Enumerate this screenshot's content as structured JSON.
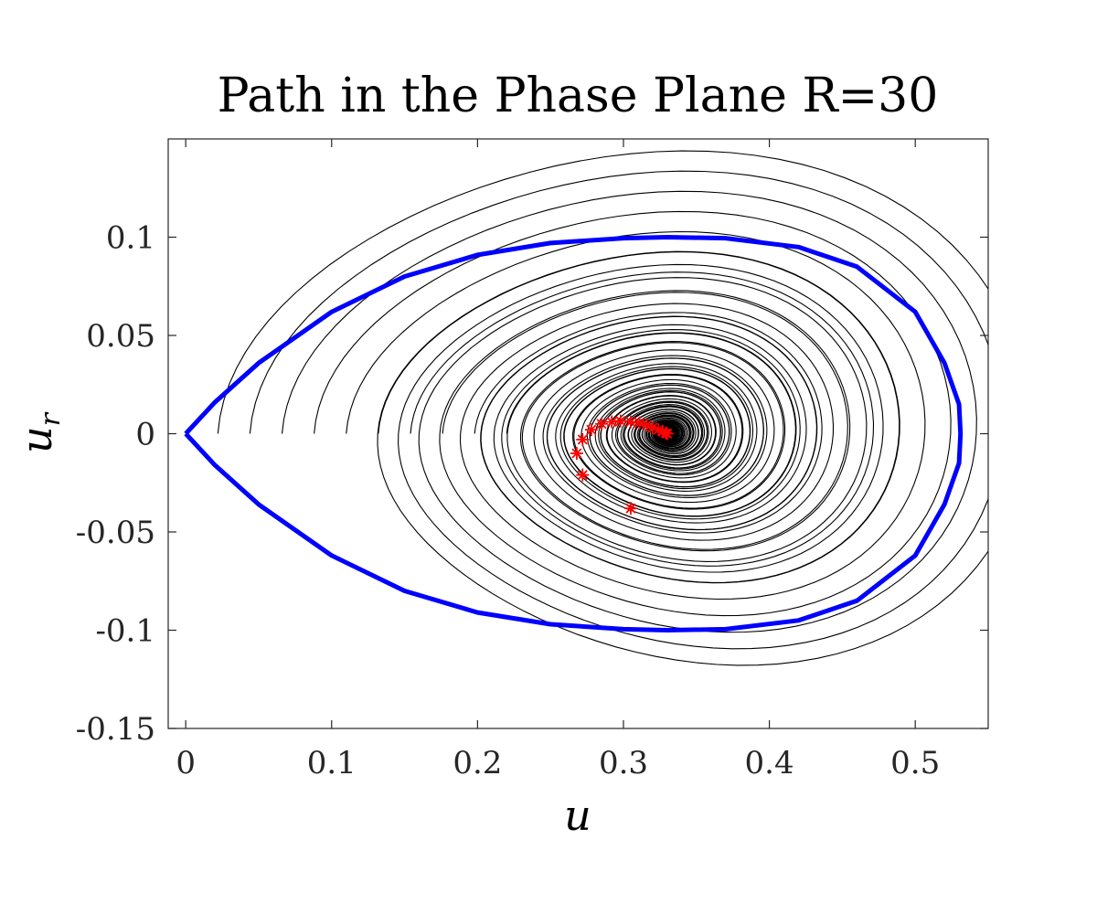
{
  "chart_data": {
    "type": "line",
    "title": "Path in the Phase Plane R=30",
    "xlabel": "u",
    "ylabel_base": "u",
    "ylabel_sub": "r",
    "xlim": [
      -0.012,
      0.55
    ],
    "ylim": [
      -0.15,
      0.15
    ],
    "xticks": [
      0,
      0.1,
      0.2,
      0.3,
      0.4,
      0.5
    ],
    "xtick_labels": [
      "0",
      "0.1",
      "0.2",
      "0.3",
      "0.4",
      "0.5"
    ],
    "yticks": [
      -0.15,
      -0.1,
      -0.05,
      0,
      0.05,
      0.1
    ],
    "ytick_labels": [
      "-0.15",
      "-0.1",
      "-0.05",
      "0",
      "0.05",
      "0.1"
    ],
    "grid": false,
    "colors": {
      "boundary": "#0000ff",
      "trajectories": "#000000",
      "markers": "#ff0000"
    },
    "boundary_curve": {
      "description": "homoclinic-like separatrix through origin",
      "points": [
        [
          0.0,
          0.0
        ],
        [
          0.02,
          0.016
        ],
        [
          0.05,
          0.036
        ],
        [
          0.1,
          0.062
        ],
        [
          0.15,
          0.08
        ],
        [
          0.2,
          0.091
        ],
        [
          0.25,
          0.097
        ],
        [
          0.3,
          0.0995
        ],
        [
          0.33,
          0.1
        ],
        [
          0.37,
          0.0995
        ],
        [
          0.42,
          0.095
        ],
        [
          0.46,
          0.085
        ],
        [
          0.5,
          0.062
        ],
        [
          0.52,
          0.036
        ],
        [
          0.53,
          0.015
        ],
        [
          0.531,
          0.0
        ]
      ],
      "symmetric_about_x_axis": true
    },
    "equilibrium": [
      0.33,
      0.0
    ],
    "trajectory_start_x": [
      0.022,
      0.044,
      0.066,
      0.088,
      0.11,
      0.132,
      0.154,
      0.176,
      0.198,
      0.22
    ],
    "marker_points": [
      [
        0.305,
        -0.038
      ],
      [
        0.272,
        -0.021
      ],
      [
        0.268,
        -0.01
      ],
      [
        0.272,
        -0.003
      ],
      [
        0.278,
        0.002
      ],
      [
        0.285,
        0.005
      ],
      [
        0.292,
        0.006
      ],
      [
        0.298,
        0.0065
      ],
      [
        0.305,
        0.006
      ],
      [
        0.311,
        0.0055
      ],
      [
        0.316,
        0.0045
      ],
      [
        0.32,
        0.003
      ],
      [
        0.324,
        0.002
      ],
      [
        0.327,
        0.001
      ],
      [
        0.329,
        0.0003
      ],
      [
        0.33,
        0.0
      ]
    ]
  }
}
